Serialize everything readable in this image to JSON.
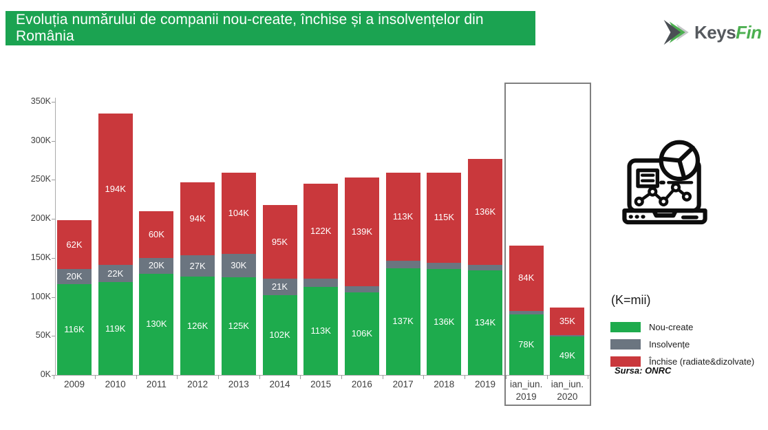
{
  "header": {
    "title": "Evoluția numărului de companii nou-create, închise și a insolvențelor din România",
    "banner_color": "#1ba351"
  },
  "logo": {
    "text_dark": "Keys",
    "text_accent": "Fin",
    "color_dark": "#55595e",
    "color_accent": "#4caf50",
    "icon": "double-chevron-right-icon"
  },
  "side_panel": {
    "units_note": "(K=mii)",
    "source": "Sursa: ONRC",
    "icon": "laptop-analytics-icon"
  },
  "legend": {
    "items": [
      {
        "label": "Nou-create",
        "color": "#1eab4d"
      },
      {
        "label": "Insolvențe",
        "color": "#6b7580"
      },
      {
        "label": "Închise (radiate&dizolvate)",
        "color": "#c9383c"
      }
    ]
  },
  "chart_data": {
    "type": "bar",
    "stacked": true,
    "title": "Evoluția numărului de companii nou-create, închise și a insolvențelor din România",
    "categories": [
      "2009",
      "2010",
      "2011",
      "2012",
      "2013",
      "2014",
      "2015",
      "2016",
      "2017",
      "2018",
      "2019",
      "ian_iun.\n2019",
      "ian_iun.\n2020"
    ],
    "series": [
      {
        "name": "Nou-create",
        "color": "#1eab4d",
        "values": [
          116,
          119,
          130,
          126,
          125,
          102,
          113,
          106,
          137,
          136,
          134,
          78,
          49
        ],
        "labels": [
          "116K",
          "119K",
          "130K",
          "126K",
          "125K",
          "102K",
          "113K",
          "106K",
          "137K",
          "136K",
          "134K",
          "78K",
          "49K"
        ]
      },
      {
        "name": "Insolvențe",
        "color": "#6b7580",
        "values": [
          20,
          22,
          20,
          27,
          30,
          21,
          10,
          8,
          9,
          8,
          7,
          4,
          2
        ],
        "labels": [
          "20K",
          "22K",
          "20K",
          "27K",
          "30K",
          "21K",
          "",
          "",
          "",
          "",
          "",
          "",
          ""
        ]
      },
      {
        "name": "Închise (radiate&dizolvate)",
        "color": "#c9383c",
        "values": [
          62,
          194,
          60,
          94,
          104,
          95,
          122,
          139,
          113,
          115,
          136,
          84,
          35
        ],
        "labels": [
          "62K",
          "194K",
          "60K",
          "94K",
          "104K",
          "95K",
          "122K",
          "139K",
          "113K",
          "115K",
          "136K",
          "84K",
          "35K"
        ]
      }
    ],
    "y_ticks": [
      "0K",
      "50K",
      "100K",
      "150K",
      "200K",
      "250K",
      "300K",
      "350K"
    ],
    "ylim": [
      0,
      350
    ],
    "unit": "K",
    "grid": false,
    "legend_position": "right",
    "highlight_box_categories": [
      "ian_iun.\n2019",
      "ian_iun.\n2020"
    ]
  }
}
